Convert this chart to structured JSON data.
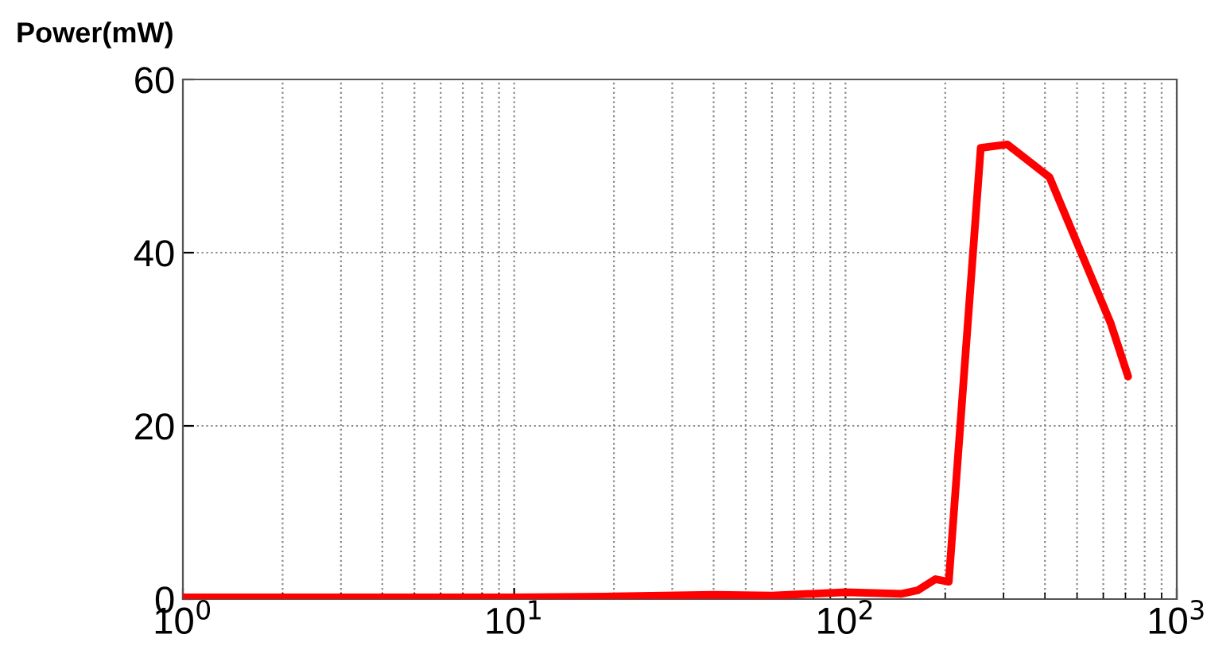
{
  "chart_data": {
    "type": "line",
    "ylabel": "Power(mW)",
    "log": "x",
    "grid": true,
    "marker": "none",
    "line_style": "solid",
    "x": [
      1,
      10,
      20,
      40,
      60,
      100,
      147,
      165,
      187,
      205,
      256,
      308,
      413,
      631,
      713
    ],
    "series": [
      {
        "color": "#ff0000",
        "values": [
          0.2,
          0.2,
          0.3,
          0.5,
          0.4,
          0.8,
          0.6,
          1.0,
          2.3,
          2.0,
          52.1,
          52.5,
          48.7,
          31.9,
          25.7
        ]
      }
    ],
    "xlim": [
      1,
      1000
    ],
    "xticks": [
      {
        "value": 1,
        "label": "10$^{0}$"
      },
      {
        "value": 10,
        "label": "10$^{1}$"
      },
      {
        "value": 100,
        "label": "10$^{2}$"
      },
      {
        "value": 1000,
        "label": "10$^{3}$"
      }
    ],
    "ylim": [
      0,
      60
    ],
    "yticks": [
      0,
      20,
      40,
      60
    ]
  }
}
